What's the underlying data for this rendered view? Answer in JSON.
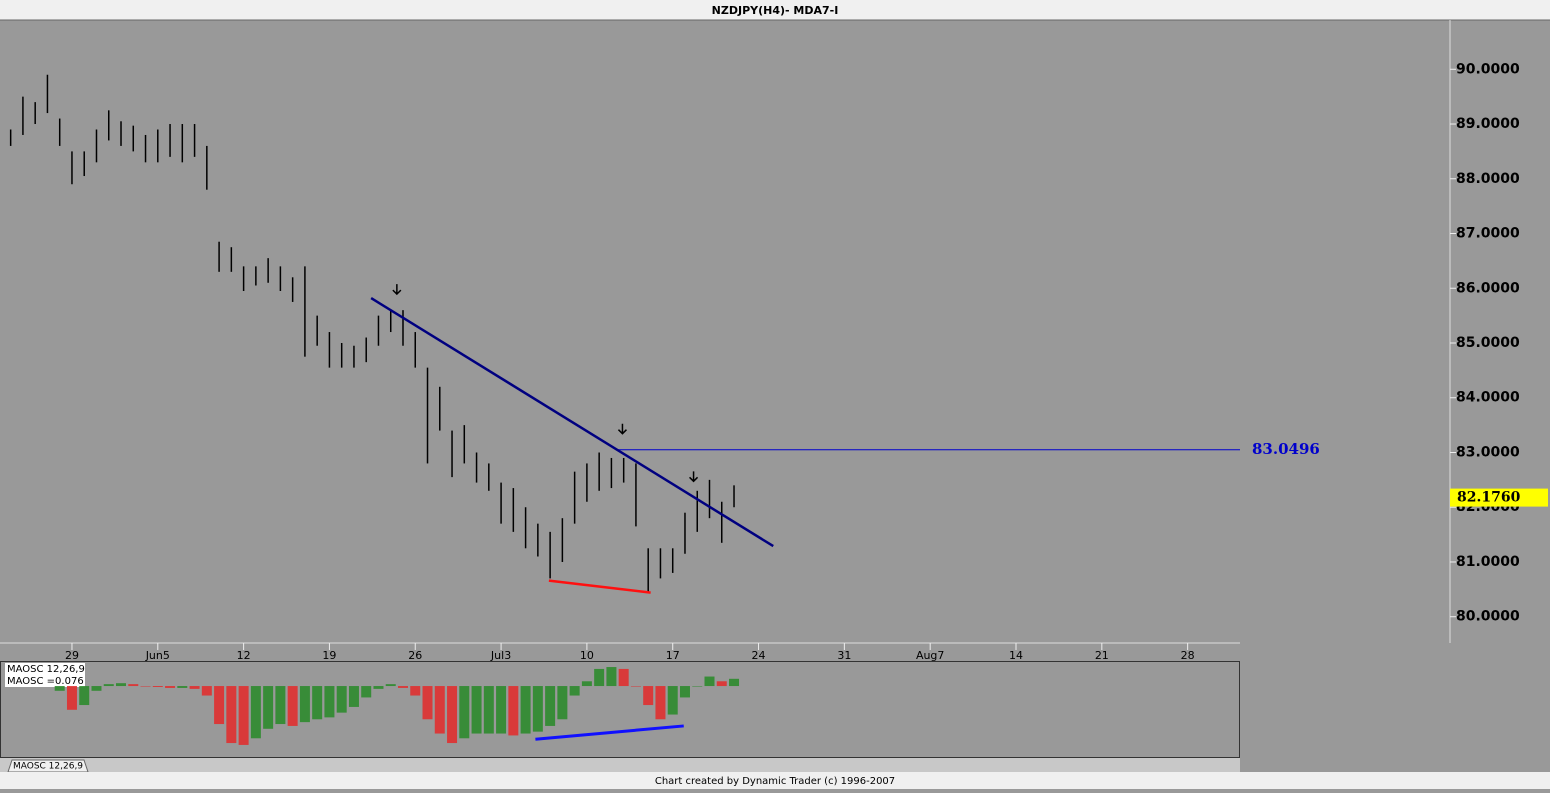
{
  "chart_data": {
    "type": "ohlc",
    "title": "NZDJPY(H4)- MDA7-I",
    "footer": "Chart created by Dynamic Trader  (c) 1996-2007",
    "x": [
      -5,
      -4,
      -3,
      -2,
      -1,
      0,
      1,
      2,
      3,
      4,
      5,
      6,
      7,
      8,
      9,
      10,
      11,
      12,
      13,
      14,
      15,
      16,
      17,
      18,
      19,
      20,
      21,
      22,
      23,
      24,
      25,
      26,
      27,
      28,
      29,
      30,
      31,
      32,
      33,
      34,
      35,
      36,
      37,
      38,
      39,
      40,
      41,
      42,
      43,
      44,
      45,
      46,
      47,
      48,
      49,
      50,
      51,
      52,
      53,
      54
    ],
    "high": [
      88.9,
      89.5,
      89.4,
      89.9,
      89.1,
      88.5,
      88.5,
      88.9,
      89.25,
      89.05,
      88.97,
      88.8,
      88.9,
      89.0,
      89.0,
      89.0,
      88.6,
      86.85,
      86.75,
      86.4,
      86.4,
      86.55,
      86.4,
      86.2,
      86.4,
      85.5,
      85.2,
      85.0,
      84.95,
      85.1,
      85.5,
      85.6,
      85.6,
      85.2,
      84.55,
      84.2,
      83.4,
      83.5,
      83.0,
      82.8,
      82.45,
      82.35,
      82.0,
      81.7,
      81.55,
      81.8,
      82.65,
      82.8,
      83.0,
      82.9,
      82.9,
      82.8,
      81.25,
      81.25,
      81.25,
      81.9,
      82.3,
      82.5,
      82.1,
      82.4
    ],
    "low": [
      88.6,
      88.8,
      89.0,
      89.2,
      88.6,
      87.9,
      88.05,
      88.3,
      88.7,
      88.6,
      88.5,
      88.3,
      88.3,
      88.4,
      88.3,
      88.4,
      87.8,
      86.3,
      86.3,
      85.95,
      86.05,
      86.1,
      85.95,
      85.75,
      84.75,
      84.95,
      84.55,
      84.55,
      84.55,
      84.65,
      84.95,
      85.2,
      84.95,
      84.55,
      82.8,
      83.4,
      82.55,
      82.8,
      82.45,
      82.3,
      81.7,
      81.55,
      81.25,
      81.1,
      80.7,
      81.0,
      81.7,
      82.1,
      82.3,
      82.35,
      82.45,
      81.65,
      80.45,
      80.7,
      80.8,
      81.15,
      81.55,
      81.8,
      81.35,
      82.0
    ],
    "color": "#000000",
    "xlim": [
      -5.87,
      95.27
    ],
    "ylim": [
      79.52,
      90.9
    ],
    "xticks": [
      {
        "value": 0,
        "label": "29"
      },
      {
        "value": 7,
        "label": "Jun5"
      },
      {
        "value": 14,
        "label": "12"
      },
      {
        "value": 21,
        "label": "19"
      },
      {
        "value": 28,
        "label": "26"
      },
      {
        "value": 35,
        "label": "Jul3"
      },
      {
        "value": 42,
        "label": "10"
      },
      {
        "value": 49,
        "label": "17"
      },
      {
        "value": 56,
        "label": "24"
      },
      {
        "value": 63,
        "label": "31"
      },
      {
        "value": 70,
        "label": "Aug7"
      },
      {
        "value": 77,
        "label": "14"
      },
      {
        "value": 84,
        "label": "21"
      },
      {
        "value": 91,
        "label": "28"
      }
    ],
    "yticks": [
      {
        "value": 80,
        "label": "80.0000"
      },
      {
        "value": 81,
        "label": "81.0000"
      },
      {
        "value": 82,
        "label": "82.0000"
      },
      {
        "value": 83,
        "label": "83.0000"
      },
      {
        "value": 84,
        "label": "84.0000"
      },
      {
        "value": 85,
        "label": "85.0000"
      },
      {
        "value": 86,
        "label": "86.0000"
      },
      {
        "value": 87,
        "label": "87.0000"
      },
      {
        "value": 88,
        "label": "88.0000"
      },
      {
        "value": 89,
        "label": "89.0000"
      },
      {
        "value": 90,
        "label": "90.0000"
      }
    ],
    "levels": [
      {
        "value": 83.0496,
        "x_start": 44.5,
        "color": "#0000cc"
      }
    ],
    "last_price": {
      "value": 82.176,
      "label": "82.1760"
    },
    "lines": [
      {
        "x": [
          24.4,
          57.2
        ],
        "y": [
          85.82,
          81.29
        ],
        "color": "#000080"
      },
      {
        "x": [
          38.9,
          47.2
        ],
        "y": [
          80.66,
          80.44
        ],
        "color": "#ff1010"
      }
    ],
    "arrows": {
      "x": [
        26.5,
        44.9,
        50.7
      ],
      "y": [
        85.82,
        83.27,
        82.4
      ]
    },
    "oscillator": {
      "label": "MAOSC 12,26,9",
      "value_text": "MAOSC =0.076",
      "tab": "MAOSC 12,26,9",
      "ylim": [
        -0.747,
        0.253
      ],
      "up_color": "#2e8b2e",
      "down_color": "#e03030",
      "values": [
        null,
        null,
        null,
        null,
        -0.05,
        -0.25,
        -0.2,
        -0.05,
        0.02,
        0.03,
        0.02,
        0.0,
        -0.01,
        -0.02,
        -0.02,
        -0.03,
        -0.1,
        -0.4,
        -0.6,
        -0.62,
        -0.55,
        -0.45,
        -0.4,
        -0.42,
        -0.38,
        -0.35,
        -0.33,
        -0.28,
        -0.22,
        -0.12,
        -0.03,
        0.02,
        -0.02,
        -0.1,
        -0.35,
        -0.5,
        -0.6,
        -0.55,
        -0.5,
        -0.5,
        -0.5,
        -0.52,
        -0.5,
        -0.48,
        -0.42,
        -0.35,
        -0.1,
        0.05,
        0.18,
        0.2,
        0.18,
        0.0,
        -0.2,
        -0.35,
        -0.3,
        -0.12,
        0.0,
        0.1,
        0.05,
        0.076
      ],
      "line": {
        "x": [
          37.8,
          49.9
        ],
        "y": [
          -0.56,
          -0.42
        ],
        "color": "#1010ff"
      }
    }
  }
}
